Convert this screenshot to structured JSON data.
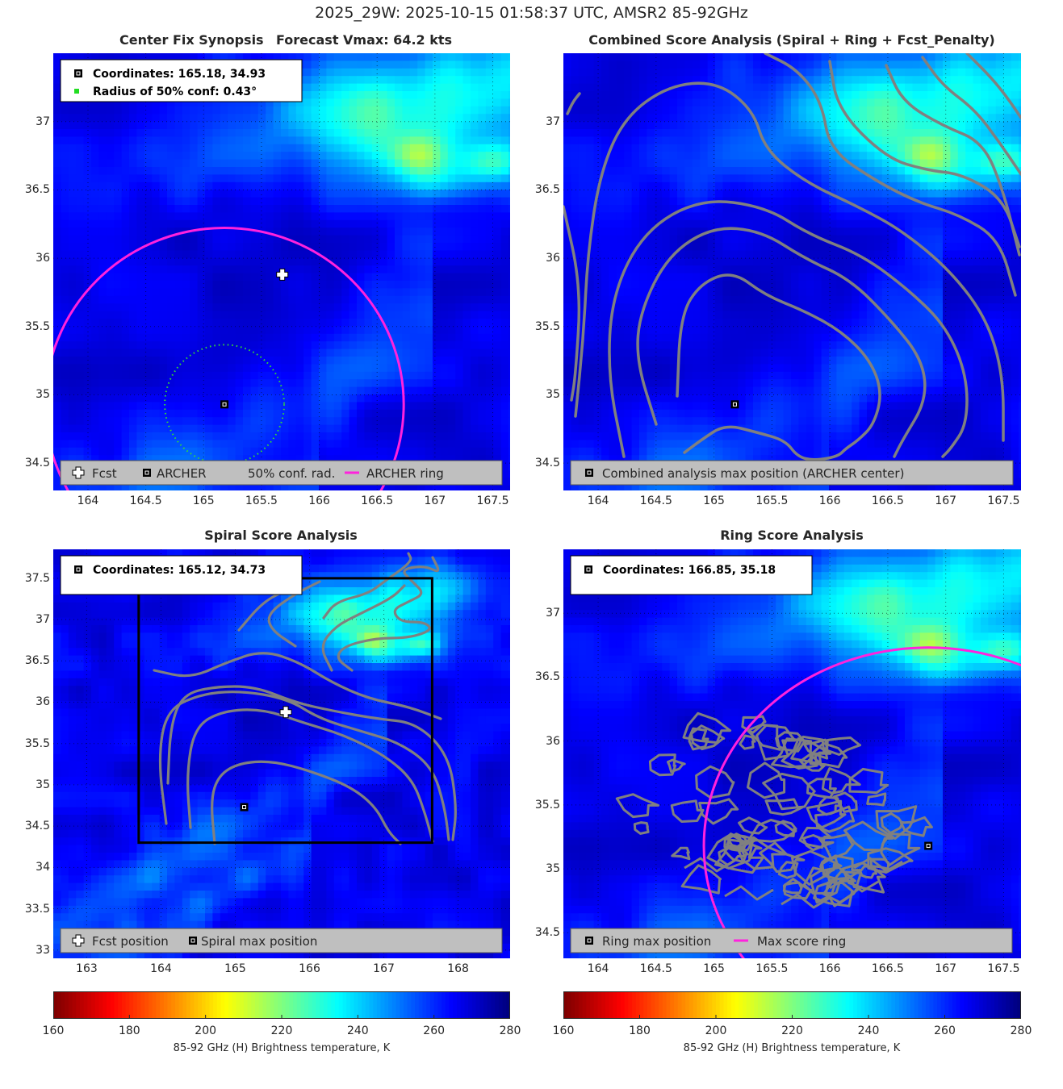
{
  "figure": {
    "suptitle": "2025_29W: 2025-10-15 01:58:37 UTC, AMSR2 85-92GHz",
    "colors": {
      "magenta": "#ff22dd",
      "contour": "#808080",
      "legend_bg": "#bfbfbf"
    }
  },
  "chart_data": [
    {
      "id": "p1",
      "type": "heatmap",
      "title": "Center Fix Synopsis",
      "subtitle": "Forecast Vmax: 64.2 kts",
      "xlim": [
        163.7,
        167.65
      ],
      "ylim": [
        34.3,
        37.5
      ],
      "xticks": [
        "164",
        "164.5",
        "165",
        "165.5",
        "166",
        "166.5",
        "167",
        "167.5"
      ],
      "yticks": [
        "34.5",
        "35",
        "35.5",
        "36",
        "36.5",
        "37"
      ],
      "info_lines": [
        "Coordinates: 165.18, 34.93",
        "Radius of 50% conf: 0.43°"
      ],
      "legend": [
        "Fcst",
        "ARCHER",
        "50% conf. rad.",
        "ARCHER ring"
      ],
      "forecast": [
        165.68,
        35.88
      ],
      "archer": [
        165.18,
        34.93
      ],
      "conf_radius_deg": 0.43,
      "ring": {
        "center": [
          165.18,
          34.93
        ],
        "radius_deg": 1.55
      },
      "grid": "dotted"
    },
    {
      "id": "p2",
      "type": "heatmap",
      "title": "Combined Score Analysis (Spiral + Ring + Fcst_Penalty)",
      "xlim": [
        163.7,
        167.65
      ],
      "ylim": [
        34.3,
        37.5
      ],
      "xticks": [
        "164",
        "164.5",
        "165",
        "165.5",
        "166",
        "166.5",
        "167",
        "167.5"
      ],
      "yticks": [
        "34.5",
        "35",
        "35.5",
        "36",
        "36.5",
        "37"
      ],
      "legend": [
        "Combined analysis max position (ARCHER center)"
      ],
      "archer": [
        165.18,
        34.93
      ],
      "contours": "combined score"
    },
    {
      "id": "p3",
      "type": "heatmap",
      "title": "Spiral Score Analysis",
      "xlim": [
        162.55,
        168.7
      ],
      "ylim": [
        32.9,
        37.85
      ],
      "xticks": [
        "163",
        "164",
        "165",
        "166",
        "167",
        "168"
      ],
      "yticks": [
        "33",
        "33.5",
        "34",
        "34.5",
        "35",
        "35.5",
        "36",
        "36.5",
        "37",
        "37.5"
      ],
      "info_lines": [
        "Coordinates: 165.12, 34.73"
      ],
      "legend": [
        "Fcst position",
        "Spiral max position"
      ],
      "forecast": [
        165.68,
        35.88
      ],
      "spiral_max": [
        165.12,
        34.73
      ],
      "search_box": {
        "x": [
          163.7,
          167.65
        ],
        "y": [
          34.3,
          37.5
        ]
      }
    },
    {
      "id": "p4",
      "type": "heatmap",
      "title": "Ring Score Analysis",
      "xlim": [
        163.7,
        167.65
      ],
      "ylim": [
        34.3,
        37.5
      ],
      "xticks": [
        "164",
        "164.5",
        "165",
        "165.5",
        "166",
        "166.5",
        "167",
        "167.5"
      ],
      "yticks": [
        "34.5",
        "35",
        "35.5",
        "36",
        "36.5",
        "37"
      ],
      "info_lines": [
        "Coordinates: 166.85, 35.18"
      ],
      "legend": [
        "Ring max position",
        "Max score ring"
      ],
      "ring_max": [
        166.85,
        35.18
      ],
      "ring": {
        "center": [
          166.85,
          35.18
        ],
        "radius_deg": 1.25
      }
    }
  ],
  "colorbars": [
    {
      "ticks": [
        "160",
        "180",
        "200",
        "220",
        "240",
        "260",
        "280"
      ],
      "label": "85-92 GHz (H) Brightness temperature, K",
      "range": [
        160,
        280
      ],
      "colormap": "jet reversed"
    },
    {
      "ticks": [
        "160",
        "180",
        "200",
        "220",
        "240",
        "260",
        "280"
      ],
      "label": "85-92 GHz (H) Brightness temperature, K",
      "range": [
        160,
        280
      ],
      "colormap": "jet reversed"
    }
  ]
}
